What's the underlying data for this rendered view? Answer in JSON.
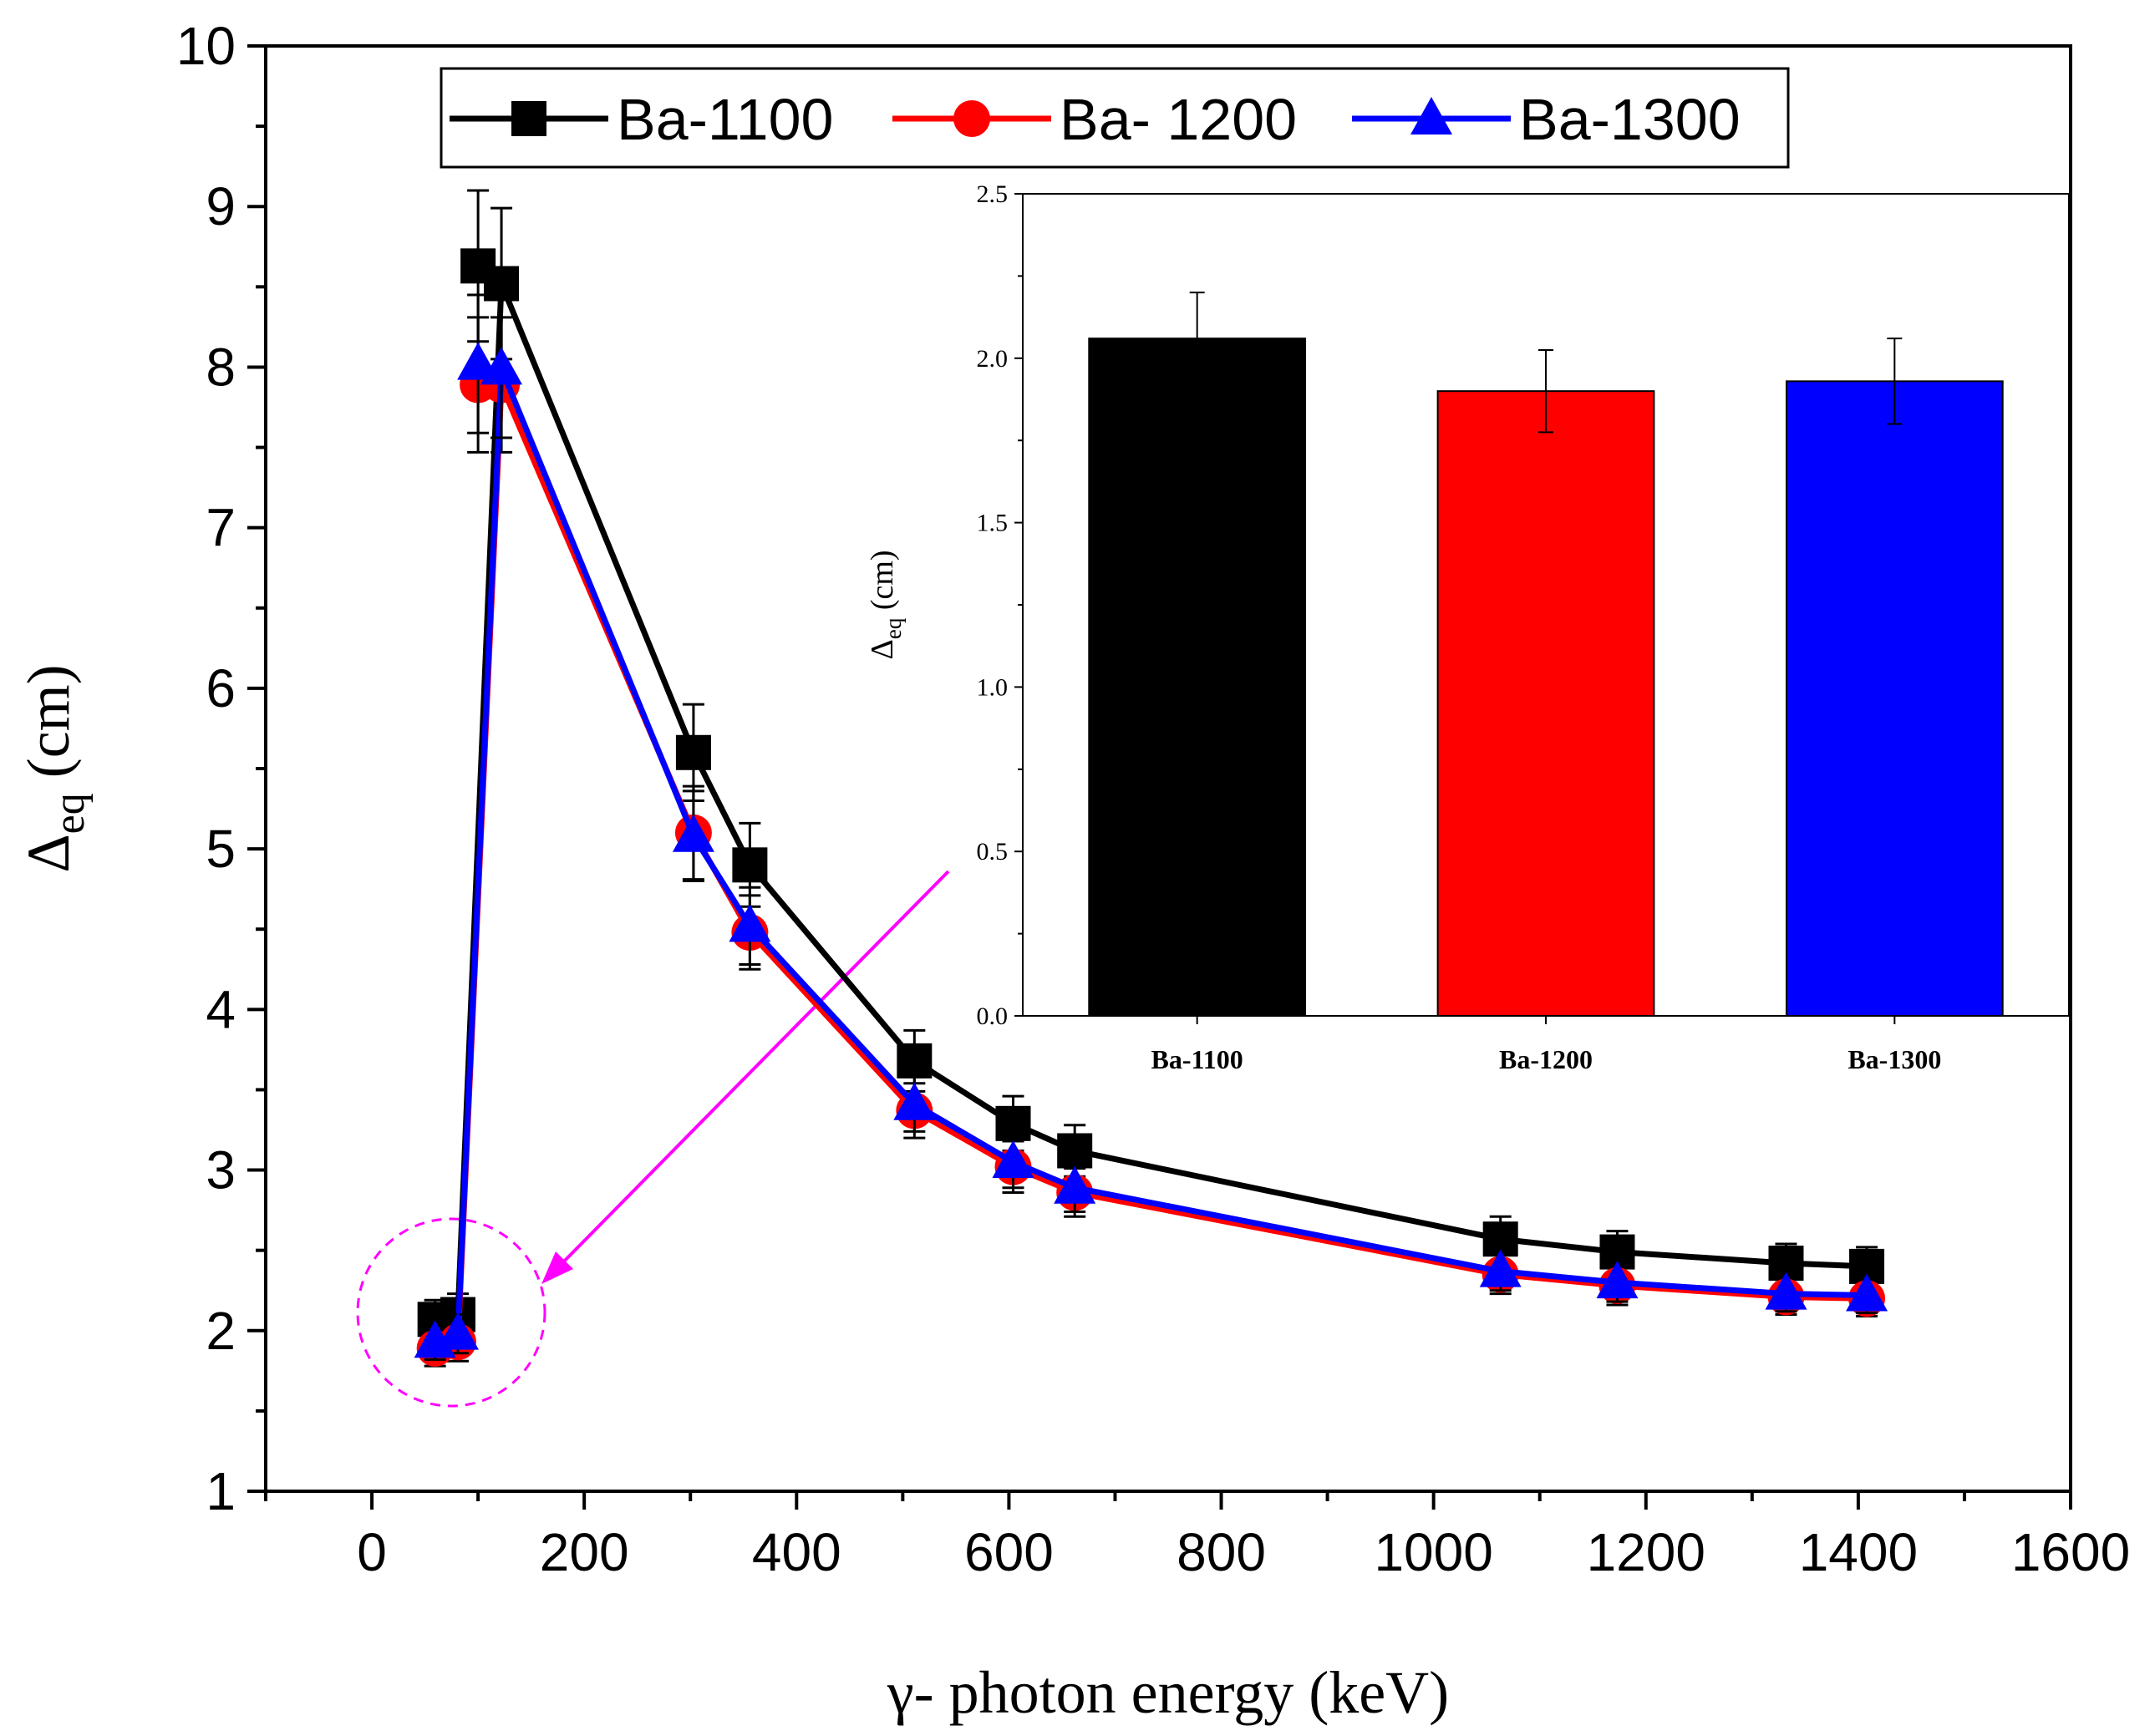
{
  "chart_data": [
    {
      "type": "line",
      "xlabel": "γ- photon energy (keV)",
      "ylabel": {
        "symbol": "Δ",
        "subscript": "eq",
        "unit": "(cm)"
      },
      "xlim": [
        -100,
        1600
      ],
      "ylim": [
        1,
        10
      ],
      "xticks": [
        0,
        200,
        400,
        600,
        800,
        1000,
        1200,
        1400,
        1600
      ],
      "yticks": [
        1,
        2,
        3,
        4,
        5,
        6,
        7,
        8,
        9,
        10
      ],
      "x": [
        59.5,
        81,
        122,
        302.9,
        356,
        511,
        604,
        662,
        1063,
        1173,
        1332,
        1408
      ],
      "legend_position": "top-center",
      "series": [
        {
          "name": "Ba-1100",
          "color": "#000000",
          "marker": "square",
          "values": [
            2.07,
            2.1,
            8.52,
            5.6,
            4.9,
            3.68,
            3.29,
            3.12,
            2.57,
            2.49,
            2.42,
            2.4
          ],
          "errors": [
            0.12,
            0.13,
            0.47,
            0.3,
            0.26,
            0.19,
            0.17,
            0.16,
            0.14,
            0.13,
            0.12,
            0.12
          ]
        },
        {
          "name": "Ba- 1200",
          "color": "#ff0000",
          "marker": "circle",
          "values": [
            1.89,
            1.93,
            7.89,
            5.1,
            4.48,
            3.37,
            3.02,
            2.86,
            2.35,
            2.28,
            2.21,
            2.2
          ],
          "errors": [
            0.11,
            0.12,
            0.42,
            0.29,
            0.23,
            0.17,
            0.16,
            0.15,
            0.12,
            0.12,
            0.11,
            0.11
          ]
        },
        {
          "name": "Ba-1300",
          "color": "#0000ff",
          "marker": "triangle",
          "values": [
            1.93,
            1.98,
            7.99,
            5.08,
            4.52,
            3.41,
            3.05,
            2.89,
            2.37,
            2.3,
            2.23,
            2.22
          ],
          "errors": [
            0.11,
            0.12,
            0.43,
            0.28,
            0.24,
            0.17,
            0.16,
            0.15,
            0.12,
            0.12,
            0.11,
            0.11
          ]
        }
      ],
      "extra_points": [
        {
          "series": "Ba-1100",
          "x": 100,
          "y": 8.63,
          "error": 0.47
        },
        {
          "series": "Ba- 1200",
          "x": 100,
          "y": 7.89,
          "error": 0.42
        },
        {
          "series": "Ba-1300",
          "x": 100,
          "y": 8.02,
          "error": 0.43
        }
      ],
      "annotations": [
        {
          "type": "dashed-circle",
          "color": "#ff00ff",
          "x": 88,
          "y": 2.0
        },
        {
          "type": "arrow",
          "color": "#ff00ff",
          "from": "inset",
          "to": "dashed-circle"
        }
      ]
    },
    {
      "type": "bar",
      "inset": true,
      "ylabel": {
        "symbol": "Δ",
        "subscript": "eq",
        "unit": "(cm)"
      },
      "ylim": [
        0,
        2.5
      ],
      "yticks": [
        "0.0",
        "0.5",
        "1.0",
        "1.5",
        "2.0",
        "2.5"
      ],
      "categories": [
        "Ba-1100",
        "Ba-1200",
        "Ba-1300"
      ],
      "values": [
        2.06,
        1.9,
        1.93
      ],
      "errors": [
        0.14,
        0.125,
        0.13
      ],
      "colors": [
        "#000000",
        "#ff0000",
        "#0000ff"
      ]
    }
  ]
}
